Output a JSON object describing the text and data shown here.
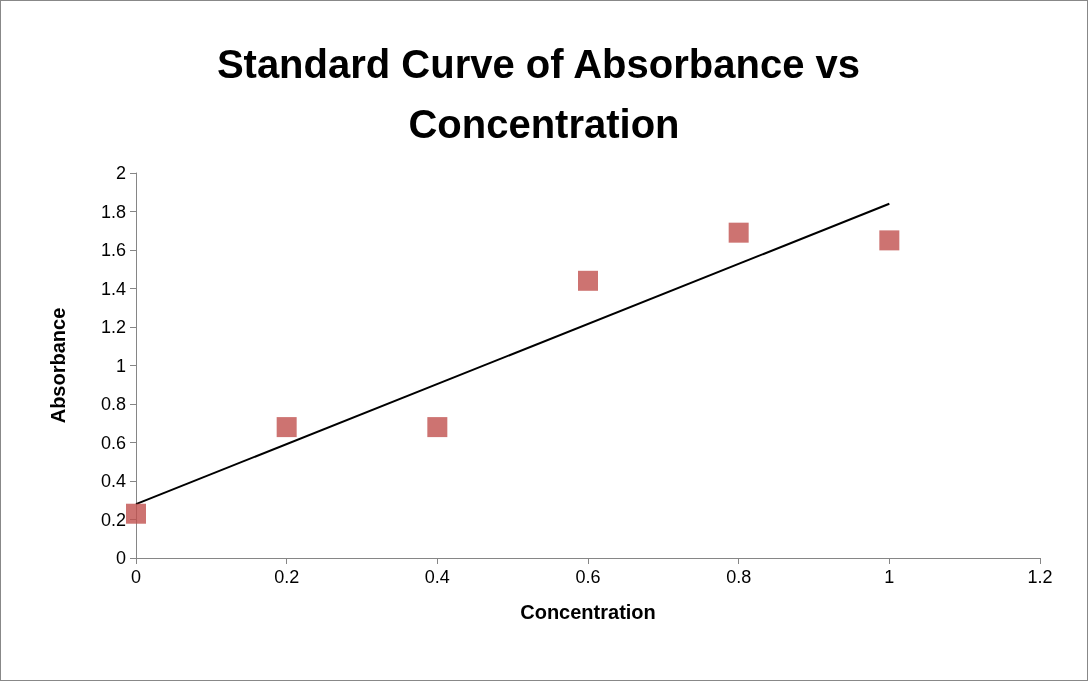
{
  "chart_data": {
    "type": "scatter",
    "title": "Standard Curve of Absorbance vs Concentration",
    "xlabel": "Concentration",
    "ylabel": "Absorbance",
    "series": [
      {
        "color": "#c0504d",
        "marker": "square",
        "x": [
          0,
          0.2,
          0.4,
          0.6,
          0.8,
          1
        ],
        "values": [
          0.23,
          0.68,
          0.68,
          1.44,
          1.69,
          1.65
        ]
      },
      {
        "type": "line",
        "color": "#000000",
        "marker": "none",
        "line_style": "solid",
        "x": [
          0,
          1
        ],
        "values": [
          0.28,
          1.84
        ]
      }
    ],
    "xlim": [
      0,
      1.2
    ],
    "xticks": [
      0,
      0.2,
      0.4,
      0.6,
      0.8,
      1,
      1.2
    ],
    "ylim": [
      0,
      2
    ],
    "yticks": [
      0,
      0.2,
      0.4,
      0.6,
      0.8,
      1,
      1.2,
      1.4,
      1.6,
      1.8,
      2
    ],
    "grid": false
  }
}
